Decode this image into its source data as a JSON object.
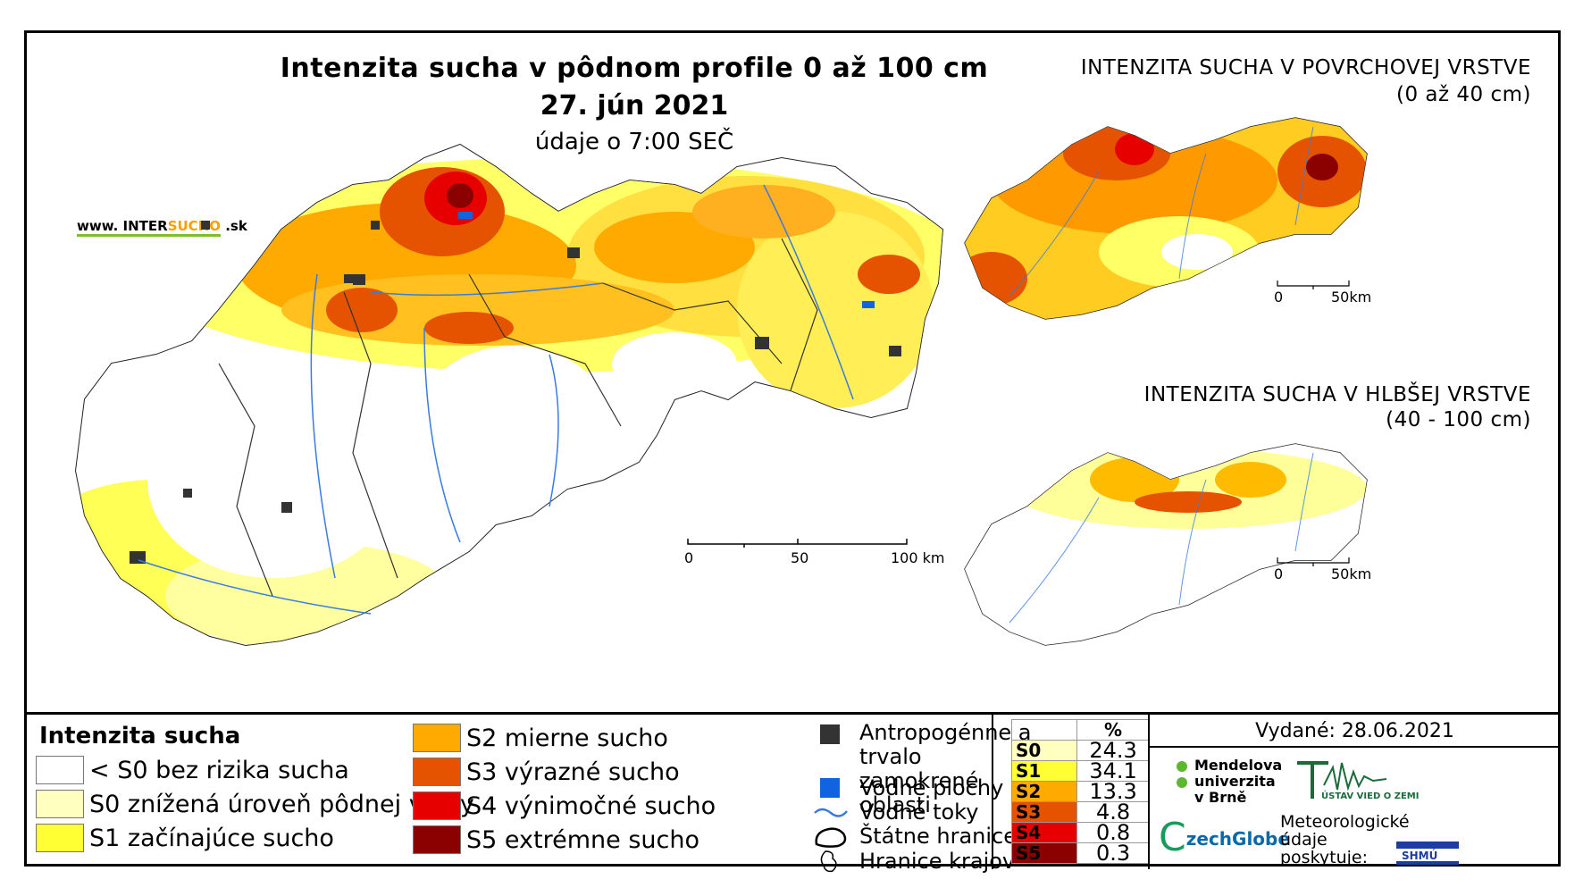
{
  "title": "Intenzita sucha v pôdnom profile 0 až 100 cm",
  "date": "27. jún 2021",
  "time_note": "údaje o 7:00 SEČ",
  "website": {
    "prefix": "www. INTER",
    "highlight": "SUCHO",
    "suffix": " .sk"
  },
  "inset_surface": {
    "title_line1": "INTENZITA SUCHA V POVRCHOVEJ VRSTVE",
    "title_line2": "(0 až 40 cm)",
    "scale": [
      "0",
      "50km"
    ]
  },
  "inset_deep": {
    "title_line1": "INTENZITA SUCHA V HLBŠEJ VRSTVE",
    "title_line2": "(40 - 100 cm)",
    "scale": [
      "0",
      "50km"
    ]
  },
  "main_scale": [
    "0",
    "50",
    "100 km"
  ],
  "legend": {
    "title": "Intenzita sucha",
    "items": [
      {
        "label": "< S0 bez rizika sucha",
        "color": "#ffffff"
      },
      {
        "label": "S0 znížená úroveň pôdnej vlahy",
        "color": "#ffffc0"
      },
      {
        "label": "S1 začínajúce sucho",
        "color": "#ffff33"
      },
      {
        "label": "S2 mierne sucho",
        "color": "#ffaa00"
      },
      {
        "label": "S3 výrazné sucho",
        "color": "#e55300"
      },
      {
        "label": "S4 výnimočné sucho",
        "color": "#e60000"
      },
      {
        "label": "S5 extrémne sucho",
        "color": "#8b0000"
      }
    ]
  },
  "symbols": [
    {
      "label": "Antropogénne a trvalo zamokrené oblasti",
      "icon": "dark-square-icon",
      "color": "#333333"
    },
    {
      "label": "Vodné plochy",
      "icon": "blue-square-icon",
      "color": "#1064e0"
    },
    {
      "label": "Vodné toky",
      "icon": "river-line-icon",
      "color": "#3a7be0"
    },
    {
      "label": "Štátne hranice",
      "icon": "state-border-icon"
    },
    {
      "label": "Hranice krajov",
      "icon": "region-border-icon"
    }
  ],
  "percent_table": {
    "header": "%",
    "rows": [
      {
        "code": "S0",
        "value": "24.3",
        "color": "#ffffc0"
      },
      {
        "code": "S1",
        "value": "34.1",
        "color": "#ffff33"
      },
      {
        "code": "S2",
        "value": "13.3",
        "color": "#ffaa00"
      },
      {
        "code": "S3",
        "value": "4.8",
        "color": "#e55300"
      },
      {
        "code": "S4",
        "value": "0.8",
        "color": "#e60000"
      },
      {
        "code": "S5",
        "value": "0.3",
        "color": "#8b0000"
      }
    ]
  },
  "issued": "Vydané: 28.06.2021",
  "logos": {
    "mendel": [
      "Mendelova",
      "univerzita",
      "v Brně"
    ],
    "czechglobe": "zechGlobe",
    "ustav": "ÚSTAV VIED O ZEMI",
    "meteo": [
      "Meteorologické",
      "údaje",
      "poskytuje:"
    ],
    "shmu": "SHMÚ"
  }
}
